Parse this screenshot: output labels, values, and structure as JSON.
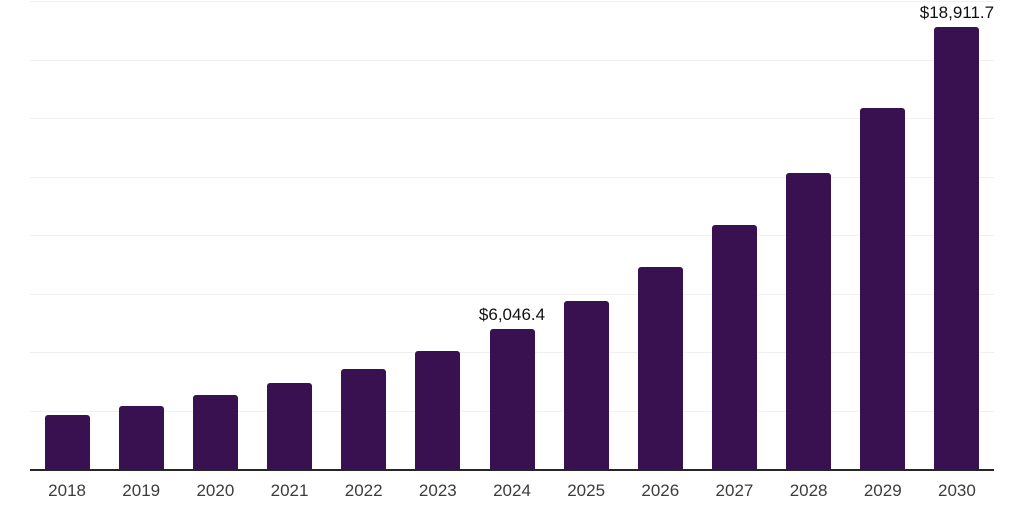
{
  "chart_data": {
    "type": "bar",
    "title": "",
    "xlabel": "",
    "ylabel": "",
    "categories": [
      "2018",
      "2019",
      "2020",
      "2021",
      "2022",
      "2023",
      "2024",
      "2025",
      "2026",
      "2027",
      "2028",
      "2029",
      "2030"
    ],
    "values": [
      2350,
      2740,
      3200,
      3720,
      4320,
      5090,
      6046.4,
      7230,
      8690,
      10480,
      12710,
      15490,
      18911.7
    ],
    "data_labels": [
      "",
      "",
      "",
      "",
      "",
      "",
      "$6,046.4",
      "",
      "",
      "",
      "",
      "",
      "$18,911.7"
    ],
    "ylim": [
      0,
      20000
    ],
    "gridline_step": 2500,
    "grid": true,
    "legend": false,
    "y_tick_labels_visible": false,
    "colors": {
      "bar": "#3A1150",
      "axis_line": "#262626",
      "gridline": "#F0F0F0",
      "data_label": "#111111",
      "tick_label": "#3C3C3C",
      "background": "#FFFFFF"
    }
  }
}
